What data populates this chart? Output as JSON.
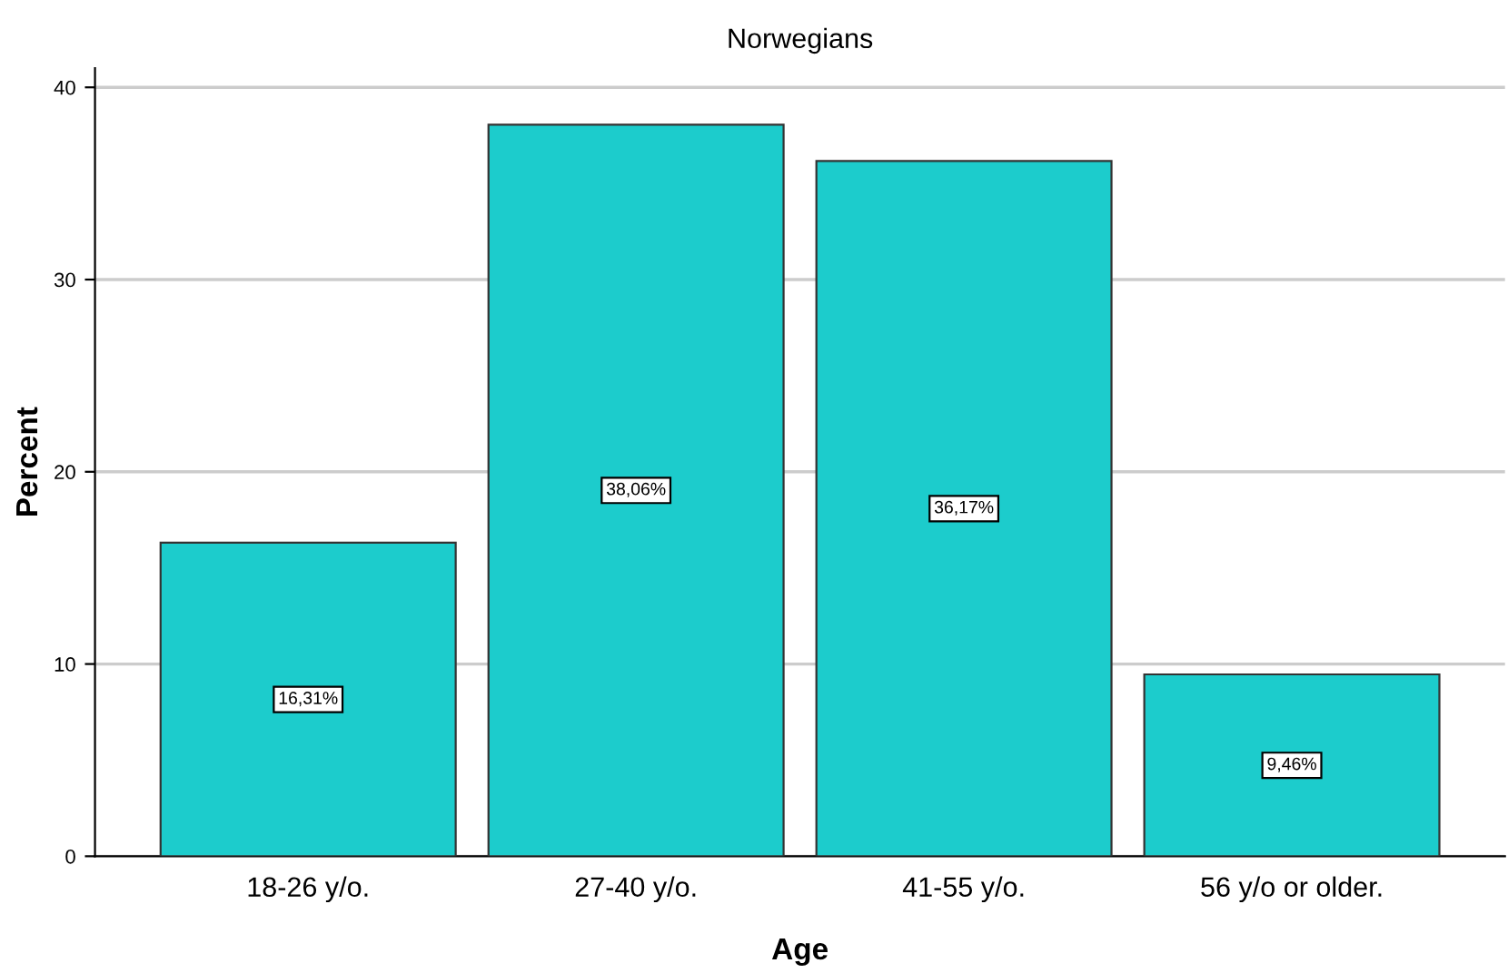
{
  "chart_data": {
    "type": "bar",
    "title": "Norwegians",
    "xlabel": "Age",
    "ylabel": "Percent",
    "categories": [
      "18-26 y/o.",
      "27-40 y/o.",
      "41-55 y/o.",
      "56 y/o or older."
    ],
    "values": [
      16.31,
      38.06,
      36.17,
      9.46
    ],
    "value_labels": [
      "16,31%",
      "38,06%",
      "36,17%",
      "9,46%"
    ],
    "color": "#1ccccc",
    "ylim": [
      0,
      41
    ],
    "yticks": [
      0,
      10,
      20,
      30,
      40
    ],
    "grid": "y"
  }
}
